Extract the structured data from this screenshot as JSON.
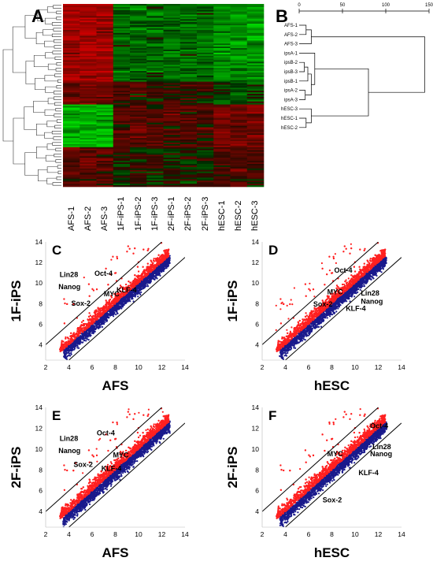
{
  "panels": {
    "a": "A",
    "b": "B",
    "c": "C",
    "d": "D",
    "e": "E",
    "f": "F"
  },
  "heatmap": {
    "conditions": [
      "AFS-1",
      "AFS-2",
      "AFS-3",
      "1F-iPS-1",
      "1F-iPS-2",
      "1F-iPS-3",
      "2F-iPS-1",
      "2F-iPS-2",
      "2F-iPS-3",
      "hESC-1",
      "hESC-2",
      "hESC-3"
    ]
  },
  "dendrogram_b": {
    "samples": [
      "AFS-1",
      "AFS-2",
      "AFS-3",
      "ipsA-1",
      "ipsB-2",
      "ipsB-3",
      "ipsB-1",
      "ipsA-2",
      "ipsA-3",
      "hESC-3",
      "hESC-1",
      "hESC-2"
    ],
    "axis_ticks": [
      "0",
      "50",
      "100",
      "150"
    ]
  },
  "chart_data": [
    {
      "type": "scatter",
      "panel": "C",
      "xlabel": "AFS",
      "ylabel": "1F-iPS",
      "xlim": [
        2,
        14
      ],
      "ylim": [
        2.5,
        14
      ],
      "xticks": [
        "2",
        "4",
        "6",
        "8",
        "10",
        "12",
        "14"
      ],
      "yticks": [
        "4",
        "6",
        "8",
        "10",
        "12",
        "14"
      ],
      "series": [
        {
          "name": "up",
          "color": "#ff2020"
        },
        {
          "name": "down",
          "color": "#1a1a8c"
        }
      ],
      "annotations": [
        {
          "text": "Lin28",
          "x": 3.2,
          "y": 10.6
        },
        {
          "text": "Oct-4",
          "x": 6.2,
          "y": 10.7
        },
        {
          "text": "Nanog",
          "x": 3.1,
          "y": 9.4
        },
        {
          "text": "KLF-4",
          "x": 8.1,
          "y": 9.1
        },
        {
          "text": "MYC",
          "x": 7.0,
          "y": 8.7
        },
        {
          "text": "Sox-2",
          "x": 4.2,
          "y": 7.8
        }
      ]
    },
    {
      "type": "scatter",
      "panel": "D",
      "xlabel": "hESC",
      "ylabel": "1F-iPS",
      "xlim": [
        2,
        14
      ],
      "ylim": [
        2.5,
        14
      ],
      "xticks": [
        "2",
        "4",
        "6",
        "8",
        "10",
        "12",
        "14"
      ],
      "yticks": [
        "4",
        "6",
        "8",
        "10",
        "12",
        "14"
      ],
      "series": [
        {
          "name": "up",
          "color": "#ff2020"
        },
        {
          "name": "down",
          "color": "#1a1a8c"
        }
      ],
      "annotations": [
        {
          "text": "Oct-4",
          "x": 8.2,
          "y": 11.0
        },
        {
          "text": "MYC",
          "x": 7.6,
          "y": 8.9
        },
        {
          "text": "Lin28",
          "x": 10.5,
          "y": 8.8
        },
        {
          "text": "Nanog",
          "x": 10.5,
          "y": 8.0
        },
        {
          "text": "Sox-2",
          "x": 6.4,
          "y": 7.7
        },
        {
          "text": "KLF-4",
          "x": 9.2,
          "y": 7.3
        }
      ]
    },
    {
      "type": "scatter",
      "panel": "E",
      "xlabel": "AFS",
      "ylabel": "2F-iPS",
      "xlim": [
        2,
        14
      ],
      "ylim": [
        2.5,
        14
      ],
      "xticks": [
        "2",
        "4",
        "6",
        "8",
        "10",
        "12",
        "14"
      ],
      "yticks": [
        "4",
        "6",
        "8",
        "10",
        "12",
        "14"
      ],
      "series": [
        {
          "name": "up",
          "color": "#ff2020"
        },
        {
          "name": "down",
          "color": "#1a1a8c"
        }
      ],
      "annotations": [
        {
          "text": "Lin28",
          "x": 3.2,
          "y": 10.8
        },
        {
          "text": "Oct-4",
          "x": 6.4,
          "y": 11.3
        },
        {
          "text": "Nanog",
          "x": 3.1,
          "y": 9.6
        },
        {
          "text": "MYC",
          "x": 7.8,
          "y": 9.2
        },
        {
          "text": "Sox-2",
          "x": 4.4,
          "y": 8.3
        },
        {
          "text": "KLF-4",
          "x": 6.8,
          "y": 7.9
        }
      ]
    },
    {
      "type": "scatter",
      "panel": "F",
      "xlabel": "hESC",
      "ylabel": "2F-iPS",
      "xlim": [
        2,
        14
      ],
      "ylim": [
        2.5,
        14
      ],
      "xticks": [
        "2",
        "4",
        "6",
        "8",
        "10",
        "12",
        "14"
      ],
      "yticks": [
        "4",
        "6",
        "8",
        "10",
        "12",
        "14"
      ],
      "series": [
        {
          "name": "up",
          "color": "#ff2020"
        },
        {
          "name": "down",
          "color": "#1a1a8c"
        }
      ],
      "annotations": [
        {
          "text": "Oct-4",
          "x": 11.3,
          "y": 12.0
        },
        {
          "text": "MYC",
          "x": 7.6,
          "y": 9.3
        },
        {
          "text": "Lin28",
          "x": 11.5,
          "y": 10.0
        },
        {
          "text": "Nanog",
          "x": 11.3,
          "y": 9.3
        },
        {
          "text": "KLF-4",
          "x": 10.3,
          "y": 7.5
        },
        {
          "text": "Sox-2",
          "x": 7.2,
          "y": 4.9
        }
      ]
    }
  ]
}
